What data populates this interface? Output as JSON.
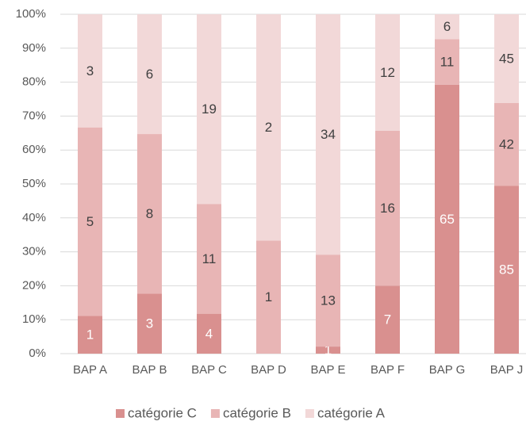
{
  "chart_data": {
    "type": "bar",
    "stacking": "percent",
    "categories": [
      "BAP A",
      "BAP B",
      "BAP C",
      "BAP D",
      "BAP E",
      "BAP F",
      "BAP G",
      "BAP J"
    ],
    "series": [
      {
        "name": "catégorie C",
        "color": "#d9908f",
        "label_color": "#ffffff",
        "values": [
          1,
          3,
          4,
          null,
          1,
          7,
          65,
          85
        ]
      },
      {
        "name": "catégorie B",
        "color": "#e8b5b5",
        "label_color": "#404040",
        "values": [
          5,
          8,
          11,
          1,
          13,
          16,
          11,
          42
        ]
      },
      {
        "name": "catégorie A",
        "color": "#f2d8d8",
        "label_color": "#404040",
        "values": [
          3,
          6,
          19,
          2,
          34,
          12,
          6,
          45
        ]
      }
    ],
    "ylim": [
      0,
      100
    ],
    "yticks": [
      {
        "value": 0,
        "label": "0%"
      },
      {
        "value": 10,
        "label": "10%"
      },
      {
        "value": 20,
        "label": "20%"
      },
      {
        "value": 30,
        "label": "30%"
      },
      {
        "value": 40,
        "label": "40%"
      },
      {
        "value": 50,
        "label": "50%"
      },
      {
        "value": 60,
        "label": "60%"
      },
      {
        "value": 70,
        "label": "70%"
      },
      {
        "value": 80,
        "label": "80%"
      },
      {
        "value": 90,
        "label": "90%"
      },
      {
        "value": 100,
        "label": "100%"
      }
    ],
    "grid": true,
    "legend": "bottom"
  }
}
